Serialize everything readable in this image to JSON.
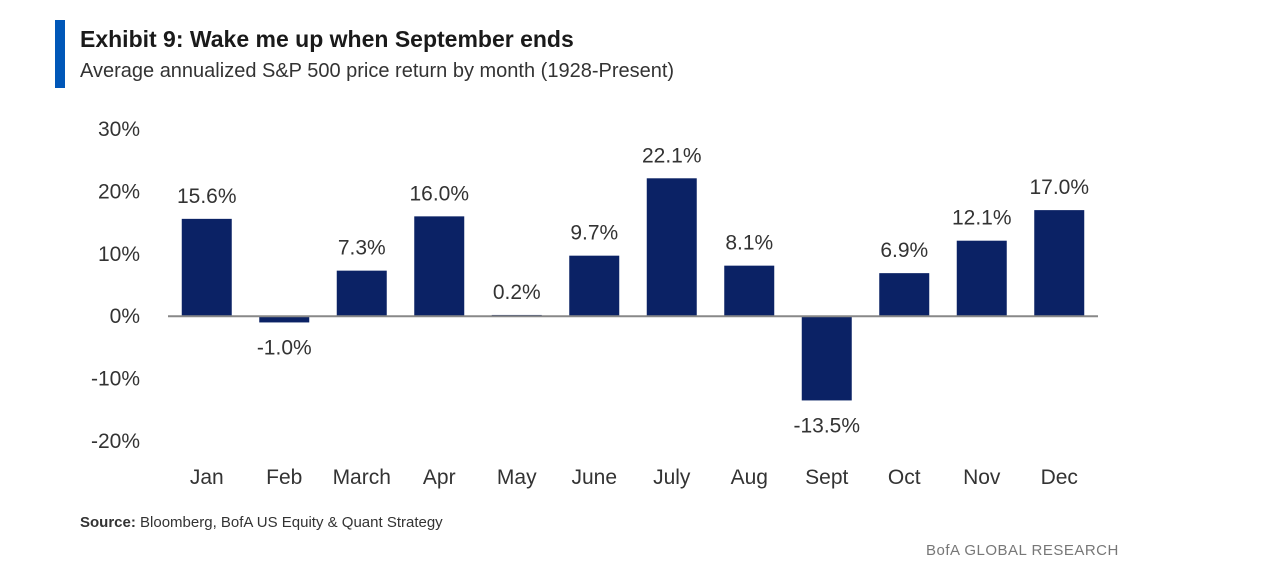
{
  "header": {
    "title": "Exhibit 9: Wake me up when September ends",
    "subtitle": "Average annualized S&P 500 price return by month (1928-Present)",
    "accent_color": "#0057b8"
  },
  "footer": {
    "source_label": "Source:",
    "source_text": " Bloomberg, BofA US Equity & Quant Strategy",
    "brand": "BofA GLOBAL RESEARCH"
  },
  "chart_data": {
    "type": "bar",
    "title": "Exhibit 9: Wake me up when September ends",
    "subtitle": "Average annualized S&P 500 price return by month (1928-Present)",
    "categories": [
      "Jan",
      "Feb",
      "March",
      "Apr",
      "May",
      "June",
      "July",
      "Aug",
      "Sept",
      "Oct",
      "Nov",
      "Dec"
    ],
    "values": [
      15.6,
      -1.0,
      7.3,
      16.0,
      0.2,
      9.7,
      22.1,
      8.1,
      -13.5,
      6.9,
      12.1,
      17.0
    ],
    "data_labels": [
      "15.6%",
      "-1.0%",
      "7.3%",
      "16.0%",
      "0.2%",
      "9.7%",
      "22.1%",
      "8.1%",
      "-13.5%",
      "6.9%",
      "12.1%",
      "17.0%"
    ],
    "yticks": [
      30,
      20,
      10,
      0,
      -10,
      -20
    ],
    "ytick_labels": [
      "30%",
      "20%",
      "10%",
      "0%",
      "-10%",
      "-20%"
    ],
    "ylim": [
      -20,
      30
    ],
    "xlabel": "",
    "ylabel": "",
    "grid": false,
    "bar_color": "#0b2265",
    "axis_color": "#888888"
  }
}
